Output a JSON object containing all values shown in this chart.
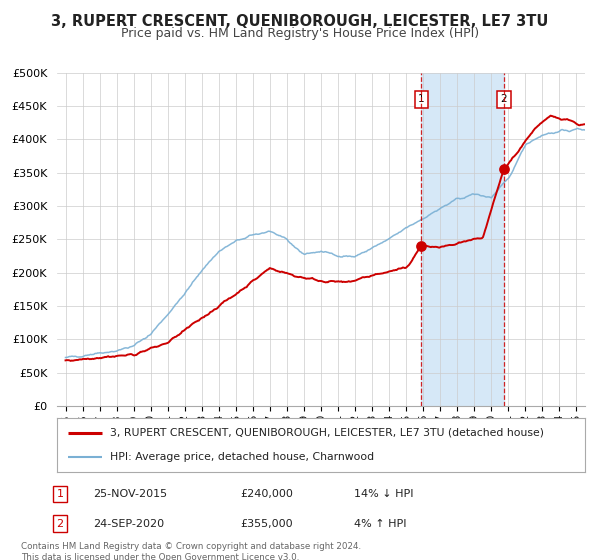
{
  "title": "3, RUPERT CRESCENT, QUENIBOROUGH, LEICESTER, LE7 3TU",
  "subtitle": "Price paid vs. HM Land Registry's House Price Index (HPI)",
  "title_fontsize": 10.5,
  "subtitle_fontsize": 9,
  "legend_line1": "3, RUPERT CRESCENT, QUENIBOROUGH, LEICESTER, LE7 3TU (detached house)",
  "legend_line2": "HPI: Average price, detached house, Charnwood",
  "red_color": "#cc0000",
  "blue_color": "#7ab0d4",
  "annotation1_label": "1",
  "annotation1_date": "25-NOV-2015",
  "annotation1_price": "£240,000",
  "annotation1_hpi": "14% ↓ HPI",
  "annotation1_year": 2015.9,
  "annotation1_value": 240000,
  "annotation2_label": "2",
  "annotation2_date": "24-SEP-2020",
  "annotation2_price": "£355,000",
  "annotation2_hpi": "4% ↑ HPI",
  "annotation2_year": 2020.73,
  "annotation2_value": 355000,
  "footer1": "Contains HM Land Registry data © Crown copyright and database right 2024.",
  "footer2": "This data is licensed under the Open Government Licence v3.0.",
  "ylim": [
    0,
    500000
  ],
  "yticks": [
    0,
    50000,
    100000,
    150000,
    200000,
    250000,
    300000,
    350000,
    400000,
    450000,
    500000
  ],
  "ytick_labels": [
    "£0",
    "£50K",
    "£100K",
    "£150K",
    "£200K",
    "£250K",
    "£300K",
    "£350K",
    "£400K",
    "£450K",
    "£500K"
  ],
  "xlim_start": 1994.5,
  "xlim_end": 2025.5,
  "xticks": [
    1995,
    1996,
    1997,
    1998,
    1999,
    2000,
    2001,
    2002,
    2003,
    2004,
    2005,
    2006,
    2007,
    2008,
    2009,
    2010,
    2011,
    2012,
    2013,
    2014,
    2015,
    2016,
    2017,
    2018,
    2019,
    2020,
    2021,
    2022,
    2023,
    2024,
    2025
  ],
  "hpi_shade_start": 2015.9,
  "hpi_shade_end": 2020.73,
  "background_color": "#ffffff",
  "grid_color": "#cccccc",
  "shade_color": "#d6e8f7"
}
